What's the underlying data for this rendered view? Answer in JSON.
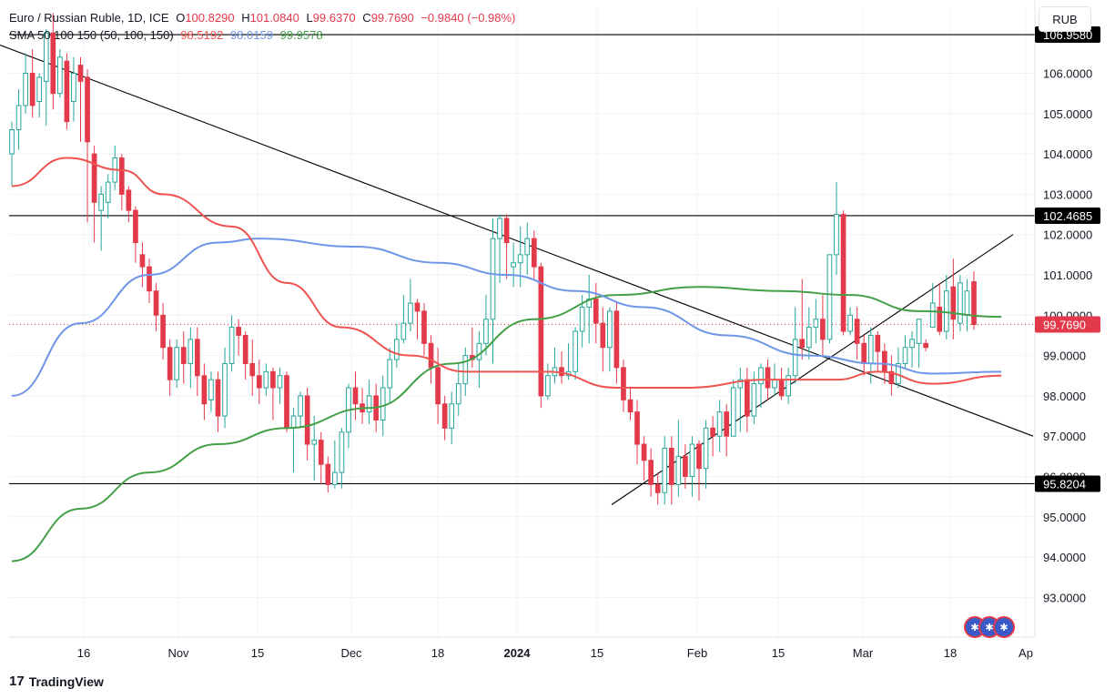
{
  "header": {
    "symbol": "Euro / Russian Ruble, 1D, ICE",
    "o_label": "O",
    "o_value": "100.8290",
    "h_label": "H",
    "h_value": "101.0840",
    "l_label": "L",
    "l_value": "99.6370",
    "c_label": "C",
    "c_value": "99.7690",
    "change": "−0.9840 (−0.98%)",
    "sma_label": "SMA 50 100 150 (50, 100, 150)",
    "sma50": "98.5192",
    "sma100": "98.0159",
    "sma150": "99.9578"
  },
  "currency": "RUB",
  "brand": {
    "logo": "17",
    "name": "TradingView"
  },
  "events_icon": "flag-icon",
  "colors": {
    "up": "#26a69a",
    "down": "#e23a4b",
    "sma50": "#ef5350",
    "sma100": "#6f96e6",
    "sma150": "#43a047",
    "lines": "#000000",
    "change": "#e23a4b"
  },
  "chart_data": {
    "type": "candlestick",
    "title": "Euro / Russian Ruble, 1D, ICE",
    "y_range": [
      92.0,
      107.5
    ],
    "y_ticks": [
      "93.0000",
      "94.0000",
      "95.0000",
      "96.0000",
      "97.0000",
      "98.0000",
      "99.0000",
      "100.0000",
      "101.0000",
      "102.0000",
      "103.0000",
      "104.0000",
      "105.0000",
      "106.0000"
    ],
    "x_ticks": [
      "16",
      "Nov",
      "15",
      "Dec",
      "18",
      "2024",
      "15",
      "Feb",
      "15",
      "Mar",
      "18",
      "Ap"
    ],
    "price_labels": [
      {
        "value": 106.958,
        "text": "106.9580",
        "style": "black"
      },
      {
        "value": 102.4685,
        "text": "102.4685",
        "style": "black"
      },
      {
        "value": 99.769,
        "text": "99.7690",
        "style": "red"
      },
      {
        "value": 95.8204,
        "text": "95.8204",
        "style": "black"
      }
    ],
    "horizontal_lines": [
      106.958,
      102.4685,
      95.8204
    ],
    "current_price": 99.769,
    "candles": [
      [
        104.0,
        104.6,
        103.2,
        104.8
      ],
      [
        104.6,
        105.2,
        104.1,
        105.6
      ],
      [
        105.2,
        106.0,
        105.0,
        106.5
      ],
      [
        106.0,
        105.2,
        104.9,
        106.6
      ],
      [
        105.3,
        105.9,
        104.9,
        106.0
      ],
      [
        105.8,
        107.0,
        104.7,
        107.1
      ],
      [
        107.0,
        105.5,
        105.1,
        107.5
      ],
      [
        105.5,
        106.4,
        105.4,
        106.6
      ],
      [
        106.3,
        104.8,
        104.6,
        106.5
      ],
      [
        105.3,
        106.0,
        104.8,
        106.4
      ],
      [
        106.2,
        105.8,
        104.3,
        106.4
      ],
      [
        105.9,
        104.3,
        102.3,
        106.1
      ],
      [
        104.0,
        102.8,
        101.8,
        104.2
      ],
      [
        102.6,
        103.0,
        101.6,
        103.2
      ],
      [
        102.8,
        103.3,
        102.4,
        103.5
      ],
      [
        103.3,
        103.9,
        103.1,
        104.2
      ],
      [
        103.9,
        103.0,
        102.6,
        104.0
      ],
      [
        103.1,
        102.6,
        102.3,
        103.2
      ],
      [
        102.6,
        101.8,
        101.3,
        102.7
      ],
      [
        101.5,
        101.2,
        100.7,
        101.8
      ],
      [
        101.2,
        100.6,
        100.3,
        101.4
      ],
      [
        100.6,
        100.0,
        99.6,
        100.8
      ],
      [
        100.0,
        99.2,
        98.9,
        100.3
      ],
      [
        99.2,
        98.4,
        98.0,
        99.4
      ],
      [
        98.4,
        99.2,
        98.2,
        99.4
      ],
      [
        99.2,
        98.8,
        98.3,
        99.6
      ],
      [
        98.8,
        99.4,
        98.2,
        99.7
      ],
      [
        99.4,
        98.5,
        98.0,
        99.7
      ],
      [
        98.5,
        97.8,
        97.4,
        98.8
      ],
      [
        97.9,
        98.4,
        97.6,
        98.6
      ],
      [
        98.4,
        97.5,
        97.1,
        98.6
      ],
      [
        97.5,
        98.8,
        97.2,
        99.2
      ],
      [
        98.8,
        99.7,
        98.6,
        100.0
      ],
      [
        99.7,
        99.5,
        99.0,
        99.9
      ],
      [
        99.5,
        98.8,
        98.4,
        99.6
      ],
      [
        98.8,
        98.5,
        98.0,
        99.4
      ],
      [
        98.5,
        98.2,
        97.8,
        98.9
      ],
      [
        98.2,
        98.6,
        98.0,
        98.8
      ],
      [
        98.6,
        98.2,
        97.4,
        98.7
      ],
      [
        98.2,
        98.5,
        97.8,
        98.7
      ],
      [
        98.5,
        97.2,
        97.1,
        98.6
      ],
      [
        97.2,
        97.5,
        96.1,
        97.7
      ],
      [
        97.5,
        98.0,
        97.2,
        98.1
      ],
      [
        98.0,
        96.8,
        96.4,
        98.2
      ],
      [
        96.8,
        96.9,
        95.9,
        97.5
      ],
      [
        96.9,
        96.3,
        95.8,
        97.1
      ],
      [
        96.3,
        95.8,
        95.6,
        96.5
      ],
      [
        95.8,
        96.1,
        95.7,
        96.9
      ],
      [
        96.1,
        97.1,
        95.7,
        97.2
      ],
      [
        97.1,
        98.2,
        96.7,
        98.3
      ],
      [
        98.2,
        97.8,
        97.4,
        98.6
      ],
      [
        97.8,
        97.6,
        97.3,
        98.2
      ],
      [
        97.6,
        98.0,
        97.3,
        98.4
      ],
      [
        98.0,
        97.4,
        97.1,
        98.3
      ],
      [
        97.4,
        98.2,
        97.0,
        98.5
      ],
      [
        98.2,
        98.9,
        97.8,
        99.2
      ],
      [
        98.9,
        99.4,
        98.7,
        99.8
      ],
      [
        99.4,
        99.8,
        99.3,
        100.5
      ],
      [
        99.8,
        100.3,
        99.6,
        100.9
      ],
      [
        100.3,
        100.1,
        99.4,
        100.4
      ],
      [
        100.1,
        99.3,
        99.0,
        100.3
      ],
      [
        99.3,
        98.7,
        98.3,
        99.5
      ],
      [
        98.7,
        97.8,
        97.3,
        99.2
      ],
      [
        97.8,
        97.2,
        96.9,
        98.0
      ],
      [
        97.2,
        97.8,
        96.8,
        98.1
      ],
      [
        97.8,
        98.3,
        97.5,
        98.8
      ],
      [
        98.3,
        99.0,
        98.0,
        99.2
      ],
      [
        99.0,
        98.9,
        98.7,
        99.7
      ],
      [
        98.9,
        99.3,
        98.2,
        99.6
      ],
      [
        99.3,
        99.9,
        99.0,
        100.5
      ],
      [
        99.9,
        101.9,
        98.8,
        102.4
      ],
      [
        101.9,
        102.4,
        100.8,
        102.5
      ],
      [
        102.4,
        101.8,
        100.9,
        102.5
      ],
      [
        101.2,
        101.3,
        100.7,
        101.8
      ],
      [
        101.3,
        101.5,
        100.7,
        102.2
      ],
      [
        101.5,
        101.9,
        101.0,
        102.3
      ],
      [
        101.9,
        101.2,
        100.9,
        102.1
      ],
      [
        101.2,
        98.0,
        97.7,
        101.3
      ],
      [
        98.0,
        98.5,
        97.9,
        98.8
      ],
      [
        98.5,
        98.7,
        98.3,
        99.2
      ],
      [
        98.7,
        98.5,
        98.3,
        99.1
      ],
      [
        98.5,
        98.6,
        98.4,
        99.3
      ],
      [
        98.6,
        99.6,
        98.4,
        99.7
      ],
      [
        99.6,
        100.2,
        99.2,
        100.5
      ],
      [
        100.2,
        100.4,
        99.3,
        101.0
      ],
      [
        100.4,
        99.8,
        99.3,
        100.8
      ],
      [
        99.8,
        99.2,
        98.6,
        100.2
      ],
      [
        99.2,
        100.1,
        98.6,
        100.2
      ],
      [
        100.1,
        98.7,
        98.3,
        100.3
      ],
      [
        98.7,
        97.9,
        97.6,
        98.9
      ],
      [
        97.9,
        97.6,
        97.4,
        98.2
      ],
      [
        97.6,
        96.8,
        96.3,
        97.9
      ],
      [
        96.8,
        96.4,
        95.9,
        97.0
      ],
      [
        96.4,
        95.8,
        95.5,
        96.7
      ],
      [
        95.8,
        95.6,
        95.3,
        96.1
      ],
      [
        95.6,
        96.7,
        95.3,
        97.0
      ],
      [
        96.7,
        95.8,
        95.3,
        97.0
      ],
      [
        95.8,
        96.5,
        95.5,
        97.4
      ],
      [
        96.5,
        96.0,
        95.7,
        96.8
      ],
      [
        96.0,
        96.8,
        95.5,
        97.0
      ],
      [
        96.8,
        96.2,
        95.4,
        96.9
      ],
      [
        96.2,
        97.2,
        95.7,
        97.4
      ],
      [
        97.2,
        97.0,
        96.5,
        97.5
      ],
      [
        97.0,
        97.6,
        96.6,
        97.9
      ],
      [
        97.6,
        97.0,
        96.5,
        97.8
      ],
      [
        97.0,
        98.2,
        97.0,
        98.4
      ],
      [
        98.2,
        98.4,
        97.1,
        98.7
      ],
      [
        98.4,
        97.5,
        97.1,
        98.7
      ],
      [
        97.5,
        98.3,
        97.3,
        98.6
      ],
      [
        98.3,
        98.7,
        97.7,
        98.8
      ],
      [
        98.7,
        98.2,
        97.9,
        98.9
      ],
      [
        98.2,
        98.4,
        98.0,
        98.8
      ],
      [
        98.4,
        98.0,
        97.9,
        98.7
      ],
      [
        98.0,
        98.5,
        97.8,
        98.7
      ],
      [
        98.5,
        99.4,
        98.3,
        100.2
      ],
      [
        99.4,
        99.2,
        98.9,
        100.9
      ],
      [
        99.2,
        99.7,
        98.9,
        100.2
      ],
      [
        99.7,
        99.9,
        99.3,
        100.4
      ],
      [
        99.9,
        99.4,
        99.0,
        100.5
      ],
      [
        99.4,
        101.5,
        99.3,
        101.5
      ],
      [
        101.5,
        102.5,
        101.0,
        103.3
      ],
      [
        102.5,
        99.6,
        99.5,
        102.6
      ],
      [
        99.6,
        100.0,
        99.5,
        100.2
      ],
      [
        99.9,
        99.3,
        98.9,
        100.2
      ],
      [
        99.3,
        98.8,
        98.5,
        99.5
      ],
      [
        98.8,
        99.5,
        98.3,
        99.7
      ],
      [
        99.5,
        99.1,
        98.6,
        99.6
      ],
      [
        99.1,
        98.6,
        98.3,
        99.3
      ],
      [
        98.6,
        98.3,
        98.0,
        99.0
      ],
      [
        98.3,
        98.8,
        98.2,
        99.2
      ],
      [
        98.8,
        99.2,
        98.7,
        99.5
      ],
      [
        99.2,
        99.4,
        98.7,
        99.6
      ],
      [
        99.3,
        99.9,
        98.7,
        99.9
      ],
      [
        99.3,
        99.2,
        99.1,
        99.4
      ],
      [
        99.7,
        100.3,
        99.7,
        100.8
      ],
      [
        100.2,
        99.6,
        99.5,
        100.8
      ],
      [
        99.6,
        100.6,
        99.4,
        101.0
      ],
      [
        100.7,
        99.9,
        99.4,
        101.4
      ],
      [
        99.8,
        100.8,
        99.6,
        101.0
      ],
      [
        100.0,
        100.6,
        99.6,
        100.9
      ],
      [
        100.829,
        99.769,
        99.637,
        101.084
      ]
    ]
  }
}
